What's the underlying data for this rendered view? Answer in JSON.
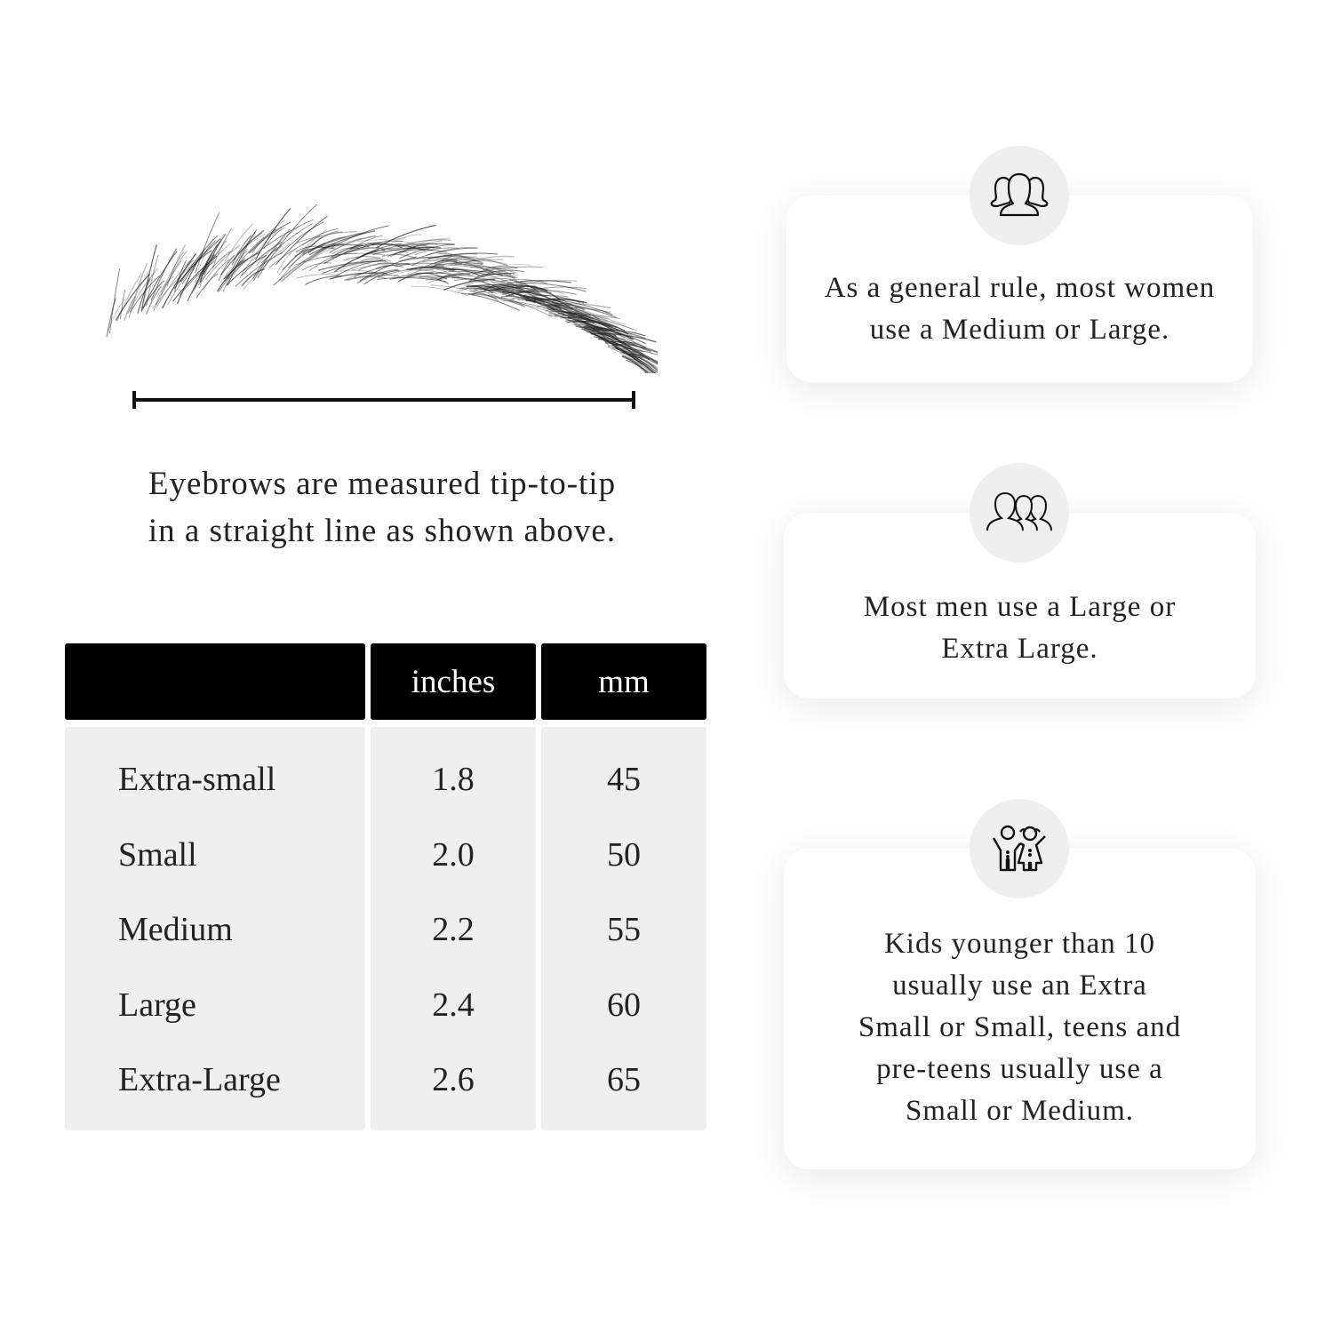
{
  "caption": {
    "lines": [
      "Eyebrows are measured tip-to-tip",
      "in a straight line as shown above."
    ]
  },
  "table": {
    "headers": [
      "",
      "inches",
      "mm"
    ],
    "rows": [
      {
        "size": "Extra-small",
        "inches": "1.8",
        "mm": "45"
      },
      {
        "size": "Small",
        "inches": "2.0",
        "mm": "50"
      },
      {
        "size": "Medium",
        "inches": "2.2",
        "mm": "55"
      },
      {
        "size": "Large",
        "inches": "2.4",
        "mm": "60"
      },
      {
        "size": "Extra-Large",
        "inches": "2.6",
        "mm": "65"
      }
    ]
  },
  "cards": [
    {
      "icon": "women-group-icon",
      "lines": [
        "As a general rule, most women",
        "use a Medium or Large."
      ]
    },
    {
      "icon": "men-group-icon",
      "lines": [
        "Most men use a Large or",
        "Extra Large."
      ]
    },
    {
      "icon": "kids-icon",
      "lines": [
        "Kids younger than 10",
        "usually use an Extra",
        "Small or Small, teens and",
        "pre-teens usually use a",
        "Small or Medium."
      ]
    }
  ],
  "colors": {
    "header_bg": "#000000",
    "cell_bg": "#efefef",
    "circle_bg": "#efefef"
  }
}
